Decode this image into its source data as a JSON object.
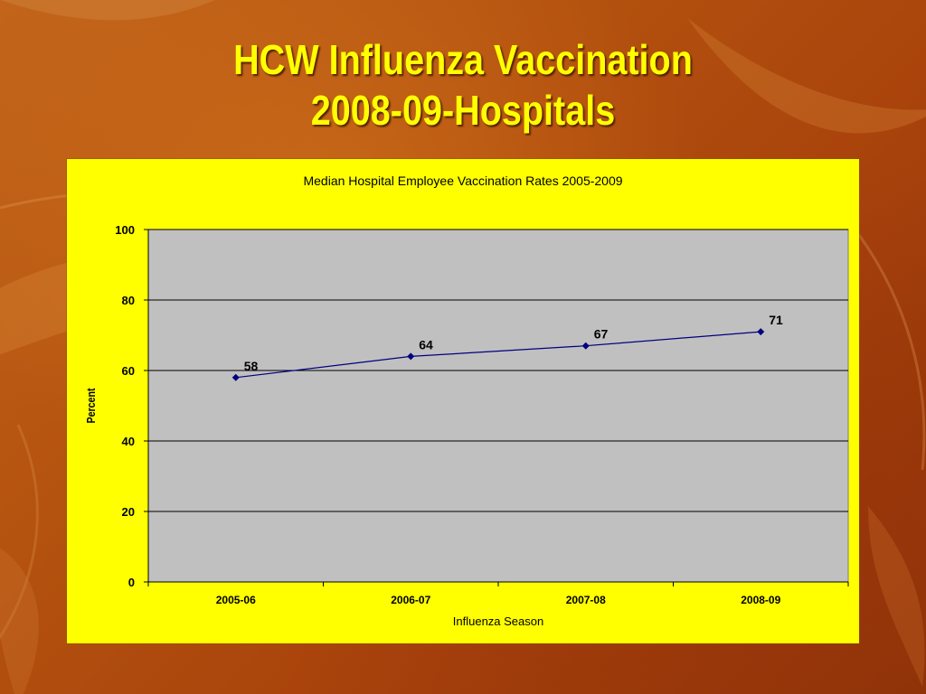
{
  "slide": {
    "title_line1": "HCW Influenza Vaccination",
    "title_line2": "2008-09-Hospitals"
  },
  "colors": {
    "title": "#ffff00",
    "panel": "#ffff00",
    "plot_area": "#c0c0c0",
    "series_line": "#000080"
  },
  "chart_data": {
    "type": "line",
    "title": "Median Hospital Employee Vaccination Rates 2005-2009",
    "xlabel": "Influenza Season",
    "ylabel": "Percent",
    "categories": [
      "2005-06",
      "2006-07",
      "2007-08",
      "2008-09"
    ],
    "series": [
      {
        "values": [
          58,
          64,
          67,
          71
        ],
        "data_labels": [
          "58",
          "64",
          "67",
          "71"
        ]
      }
    ],
    "ylim": [
      0,
      100
    ],
    "yticks": [
      "0",
      "20",
      "40",
      "60",
      "80",
      "100"
    ],
    "grid": "horizontal",
    "legend": "none"
  }
}
